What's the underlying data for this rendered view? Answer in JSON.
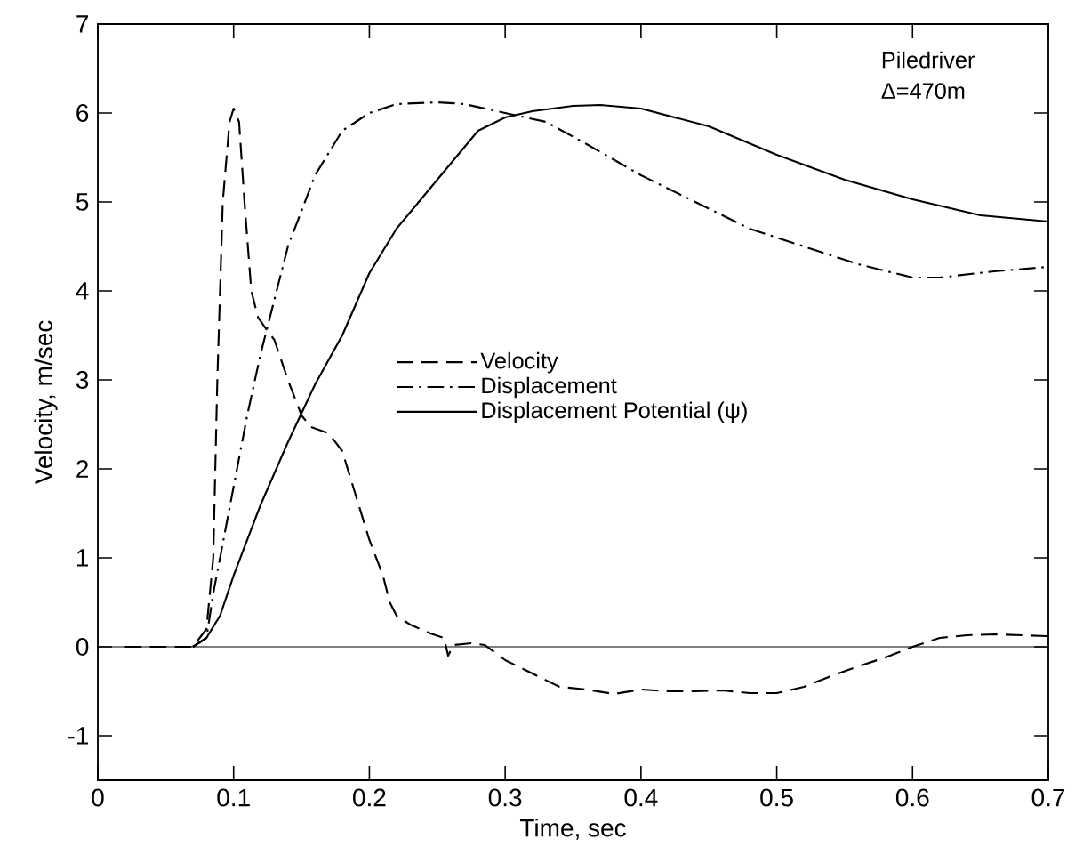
{
  "chart_data": {
    "type": "line",
    "xlabel": "Time, sec",
    "ylabel": "Velocity,  m/sec",
    "annotations": [
      "Piledriver",
      "Δ=470m"
    ],
    "xlim": [
      0,
      0.7
    ],
    "ylim": [
      -1.5,
      7
    ],
    "xticks": [
      0,
      0.1,
      0.2,
      0.3,
      0.4,
      0.5,
      0.6,
      0.7
    ],
    "yticks": [
      -1,
      0,
      1,
      2,
      3,
      4,
      5,
      6,
      7
    ],
    "grid": false,
    "legend": "center",
    "marker": "none",
    "ref_lines": [
      {
        "axis": "y",
        "value": 0,
        "color": "#000000",
        "line_style": "solid"
      }
    ],
    "series": [
      {
        "name": "Velocity",
        "color": "#000000",
        "line_style": "dashed",
        "x": [
          0.02,
          0.07,
          0.08,
          0.085,
          0.088,
          0.092,
          0.097,
          0.1,
          0.104,
          0.108,
          0.113,
          0.118,
          0.125,
          0.13,
          0.14,
          0.15,
          0.157,
          0.17,
          0.18,
          0.19,
          0.2,
          0.21,
          0.215,
          0.22,
          0.23,
          0.245,
          0.255,
          0.258,
          0.262,
          0.275,
          0.285,
          0.3,
          0.32,
          0.34,
          0.36,
          0.38,
          0.4,
          0.42,
          0.44,
          0.46,
          0.48,
          0.5,
          0.52,
          0.54,
          0.56,
          0.58,
          0.6,
          0.62,
          0.64,
          0.66,
          0.7
        ],
        "values": [
          0,
          0,
          0.2,
          1,
          3,
          5,
          5.9,
          6.05,
          5.9,
          5,
          4,
          3.7,
          3.55,
          3.45,
          3.0,
          2.6,
          2.47,
          2.4,
          2.2,
          1.7,
          1.2,
          0.8,
          0.5,
          0.35,
          0.25,
          0.15,
          0.1,
          -0.1,
          0.02,
          0.04,
          0.02,
          -0.15,
          -0.3,
          -0.45,
          -0.48,
          -0.53,
          -0.48,
          -0.5,
          -0.5,
          -0.49,
          -0.52,
          -0.52,
          -0.45,
          -0.33,
          -0.22,
          -0.12,
          0,
          0.1,
          0.13,
          0.14,
          0.12
        ]
      },
      {
        "name": "Displacement",
        "color": "#000000",
        "line_style": "dashdot",
        "x": [
          0.07,
          0.08,
          0.085,
          0.1,
          0.11,
          0.12,
          0.13,
          0.14,
          0.16,
          0.18,
          0.2,
          0.22,
          0.25,
          0.27,
          0.3,
          0.33,
          0.36,
          0.4,
          0.44,
          0.48,
          0.5,
          0.52,
          0.56,
          0.6,
          0.62,
          0.66,
          0.7
        ],
        "values": [
          0,
          0.1,
          0.6,
          1.8,
          2.6,
          3.3,
          3.9,
          4.5,
          5.3,
          5.8,
          6.0,
          6.1,
          6.12,
          6.1,
          6.0,
          5.9,
          5.65,
          5.3,
          5.0,
          4.7,
          4.6,
          4.5,
          4.3,
          4.15,
          4.15,
          4.22,
          4.27
        ]
      },
      {
        "name": "Displacement Potential (ψ)",
        "color": "#000000",
        "line_style": "solid",
        "x": [
          0.07,
          0.08,
          0.09,
          0.1,
          0.12,
          0.14,
          0.16,
          0.18,
          0.2,
          0.22,
          0.25,
          0.28,
          0.3,
          0.32,
          0.35,
          0.37,
          0.4,
          0.45,
          0.5,
          0.55,
          0.6,
          0.65,
          0.7
        ],
        "values": [
          0,
          0.1,
          0.35,
          0.8,
          1.6,
          2.3,
          2.95,
          3.5,
          4.2,
          4.7,
          5.25,
          5.8,
          5.95,
          6.02,
          6.08,
          6.09,
          6.05,
          5.85,
          5.53,
          5.25,
          5.03,
          4.85,
          4.78
        ]
      }
    ]
  }
}
